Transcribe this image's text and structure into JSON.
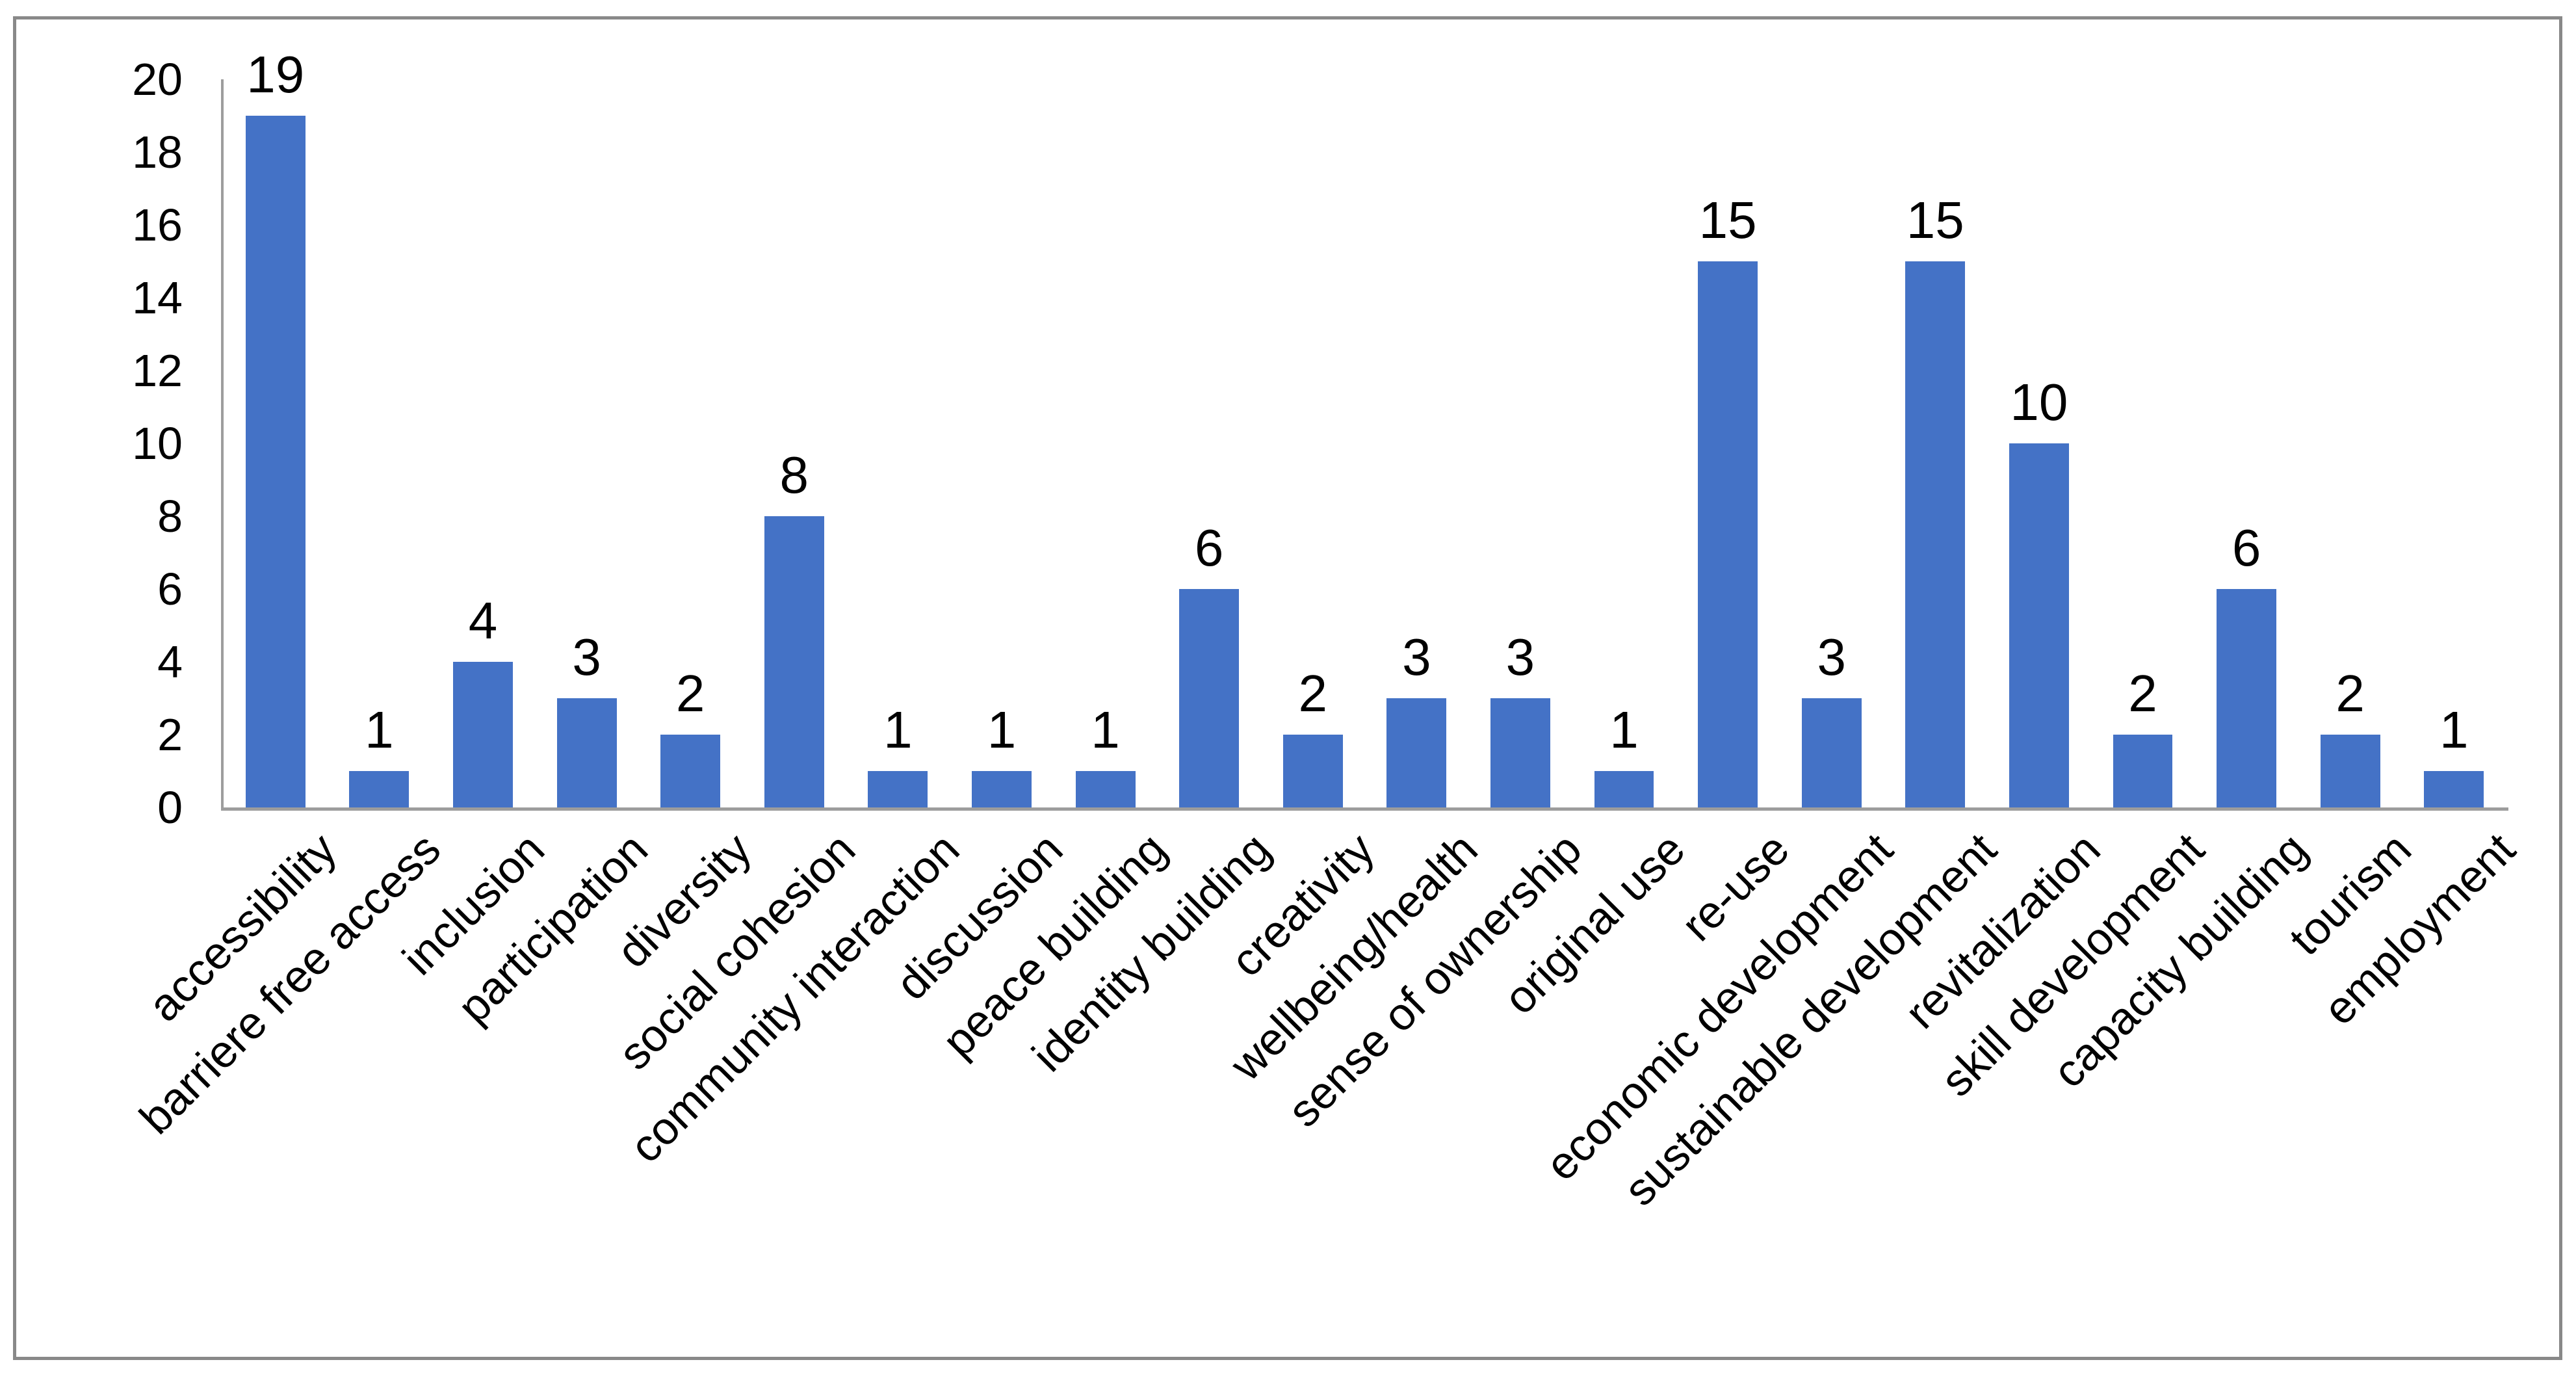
{
  "chart_data": {
    "type": "bar",
    "categories": [
      "accessibility",
      "barriere free access",
      "inclusion",
      "participation",
      "diversity",
      "social cohesion",
      "community interaction",
      "discussion",
      "peace building",
      "identity building",
      "creativity",
      "wellbeing/health",
      "sense of ownership",
      "original use",
      "re-use",
      "economic development",
      "sustainable development",
      "revitalization",
      "skill development",
      "capacity building",
      "tourism",
      "employment"
    ],
    "values": [
      19,
      1,
      4,
      3,
      2,
      8,
      1,
      1,
      1,
      6,
      2,
      3,
      3,
      1,
      15,
      3,
      15,
      10,
      2,
      6,
      2,
      1
    ],
    "data_labels_shown": true,
    "xlabel": "",
    "ylabel": "",
    "ylim": [
      0,
      20
    ],
    "yticks": [
      0,
      2,
      4,
      6,
      8,
      10,
      12,
      14,
      16,
      18,
      20
    ],
    "grid": false,
    "legend": "none",
    "bar_label_rotation_deg": -45,
    "colors": {
      "bar": "#4472C6",
      "axis_line": "#9D9D9D",
      "frame_border": "#898989",
      "text": "#000000",
      "background": "#FFFFFF"
    }
  }
}
